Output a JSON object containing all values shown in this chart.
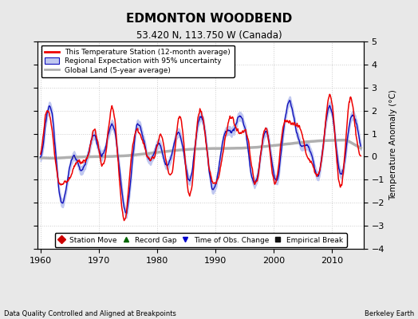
{
  "title": "EDMONTON WOODBEND",
  "subtitle": "53.420 N, 113.750 W (Canada)",
  "ylabel": "Temperature Anomaly (°C)",
  "xlabel_left": "Data Quality Controlled and Aligned at Breakpoints",
  "xlabel_right": "Berkeley Earth",
  "ylim": [
    -4,
    5
  ],
  "xlim": [
    1959.5,
    2015.5
  ],
  "xticks": [
    1960,
    1970,
    1980,
    1990,
    2000,
    2010
  ],
  "yticks": [
    -4,
    -3,
    -2,
    -1,
    0,
    1,
    2,
    3,
    4,
    5
  ],
  "background_color": "#e8e8e8",
  "plot_bg_color": "#ffffff",
  "grid_color": "#cccccc",
  "red_line_color": "#ee0000",
  "blue_line_color": "#1111bb",
  "blue_fill_color": "#c0c8f0",
  "gray_line_color": "#b0b0b0",
  "seed": 12345,
  "n_months": 660,
  "start_year": 1960.0
}
